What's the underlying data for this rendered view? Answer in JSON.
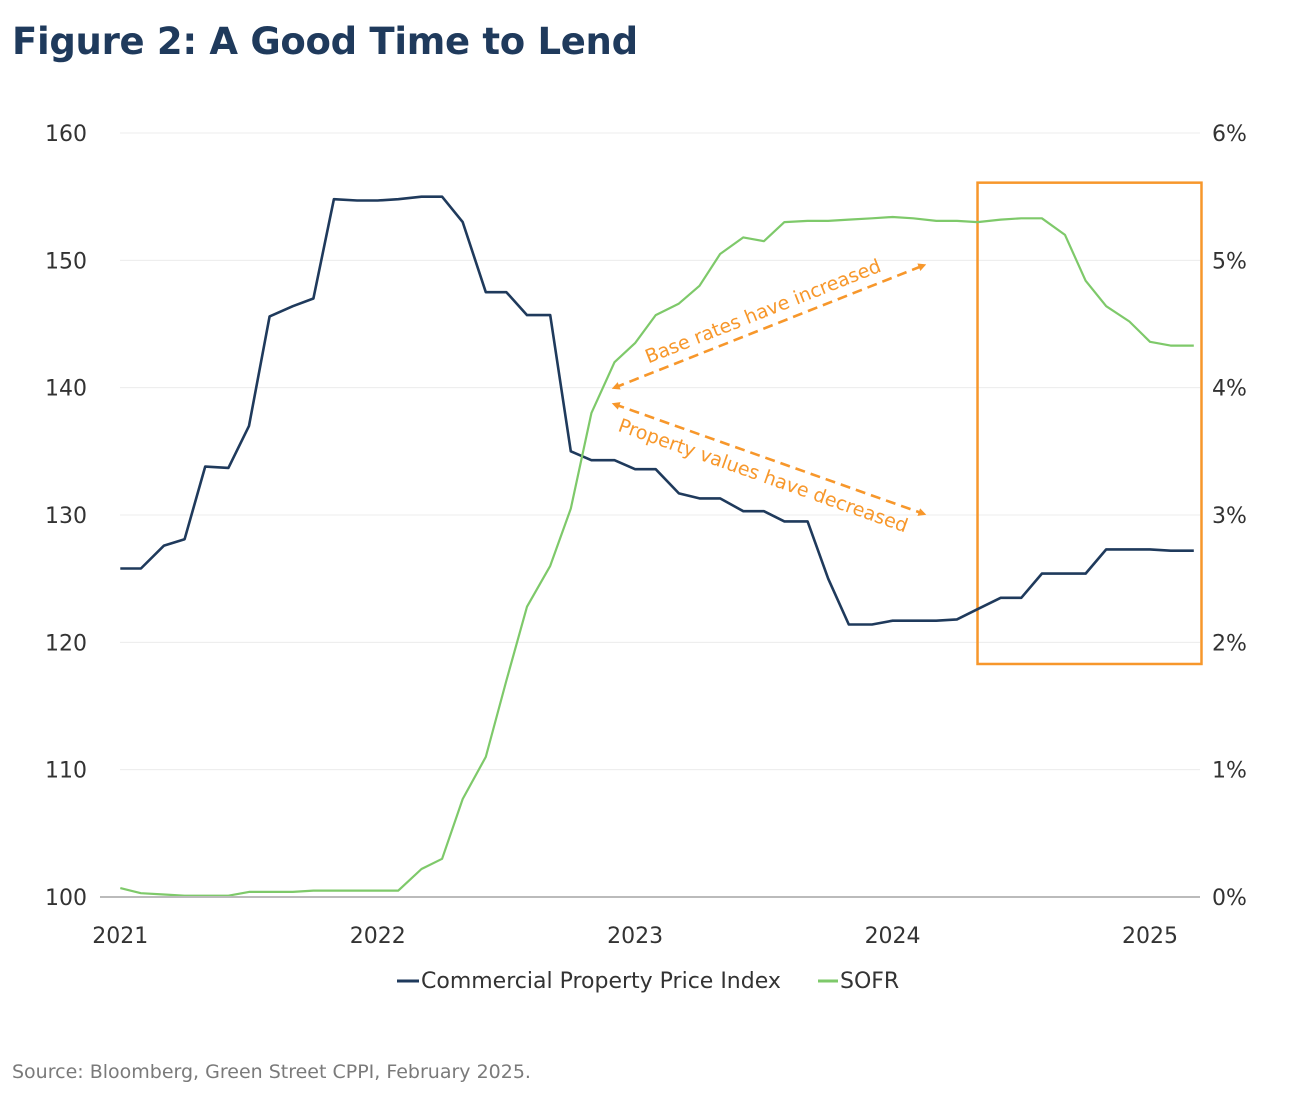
{
  "title": "Figure 2: A Good Time to Lend",
  "source": "Source: Bloomberg, Green Street CPPI, February 2025.",
  "colors": {
    "cppi": "#1f3a5c",
    "sofr": "#7ec96a",
    "annotation": "#f7972b",
    "grid": "#ececec",
    "axis": "#bbbbbb",
    "tick": "#333333"
  },
  "chart_data": {
    "type": "line",
    "title": "Figure 2: A Good Time to Lend",
    "xlabel": "",
    "ylabel": "",
    "xlim": [
      2021,
      2025.2
    ],
    "x_ticks": [
      2021,
      2022,
      2023,
      2024,
      2025
    ],
    "y_left": {
      "lim": [
        100,
        160
      ],
      "ticks": [
        100,
        110,
        120,
        130,
        140,
        150,
        160
      ],
      "tick_labels": [
        "100",
        "110",
        "120",
        "130",
        "140",
        "150",
        "160"
      ]
    },
    "y_right": {
      "lim": [
        0,
        6
      ],
      "ticks": [
        0,
        1,
        2,
        3,
        4,
        5,
        6
      ],
      "tick_labels": [
        "0%",
        "1%",
        "2%",
        "3%",
        "4%",
        "5%",
        "6%"
      ]
    },
    "series": [
      {
        "name": "Commercial Property Price Index",
        "axis": "left",
        "x": [
          2021.0,
          2021.08,
          2021.17,
          2021.25,
          2021.33,
          2021.42,
          2021.5,
          2021.58,
          2021.67,
          2021.75,
          2021.83,
          2021.92,
          2022.0,
          2022.08,
          2022.17,
          2022.25,
          2022.33,
          2022.42,
          2022.5,
          2022.58,
          2022.67,
          2022.75,
          2022.83,
          2022.92,
          2023.0,
          2023.08,
          2023.17,
          2023.25,
          2023.33,
          2023.42,
          2023.5,
          2023.58,
          2023.67,
          2023.75,
          2023.83,
          2023.92,
          2024.0,
          2024.08,
          2024.17,
          2024.25,
          2024.33,
          2024.42,
          2024.5,
          2024.58,
          2024.67,
          2024.75,
          2024.83,
          2024.92,
          2025.0,
          2025.08,
          2025.17
        ],
        "values": [
          125.8,
          125.8,
          127.6,
          128.1,
          133.8,
          133.7,
          137.0,
          145.6,
          146.4,
          147.0,
          154.8,
          154.7,
          154.7,
          154.8,
          155.0,
          155.0,
          153.0,
          147.5,
          147.5,
          145.7,
          145.7,
          135.0,
          134.3,
          134.3,
          133.6,
          133.6,
          131.7,
          131.3,
          131.3,
          130.3,
          130.3,
          129.5,
          129.5,
          125.0,
          121.4,
          121.4,
          121.7,
          121.7,
          121.7,
          121.8,
          122.6,
          123.5,
          123.5,
          125.4,
          125.4,
          125.4,
          127.3,
          127.3,
          127.3,
          127.2,
          127.2
        ]
      },
      {
        "name": "SOFR",
        "axis": "right",
        "x": [
          2021.0,
          2021.08,
          2021.17,
          2021.25,
          2021.33,
          2021.42,
          2021.5,
          2021.58,
          2021.67,
          2021.75,
          2021.83,
          2021.92,
          2022.0,
          2022.08,
          2022.17,
          2022.25,
          2022.33,
          2022.42,
          2022.5,
          2022.58,
          2022.67,
          2022.75,
          2022.83,
          2022.92,
          2023.0,
          2023.08,
          2023.17,
          2023.25,
          2023.33,
          2023.42,
          2023.5,
          2023.58,
          2023.67,
          2023.75,
          2023.83,
          2023.92,
          2024.0,
          2024.08,
          2024.17,
          2024.25,
          2024.33,
          2024.42,
          2024.5,
          2024.58,
          2024.67,
          2024.75,
          2024.83,
          2024.92,
          2025.0,
          2025.08,
          2025.17
        ],
        "values": [
          0.07,
          0.03,
          0.02,
          0.01,
          0.01,
          0.01,
          0.04,
          0.04,
          0.04,
          0.05,
          0.05,
          0.05,
          0.05,
          0.05,
          0.22,
          0.3,
          0.77,
          1.1,
          1.7,
          2.28,
          2.6,
          3.05,
          3.8,
          4.2,
          4.35,
          4.57,
          4.66,
          4.8,
          5.05,
          5.18,
          5.15,
          5.3,
          5.31,
          5.31,
          5.32,
          5.33,
          5.34,
          5.33,
          5.31,
          5.31,
          5.3,
          5.32,
          5.33,
          5.33,
          5.2,
          4.84,
          4.64,
          4.52,
          4.36,
          4.33,
          4.33
        ]
      }
    ],
    "legend": {
      "position": "bottom-center",
      "entries": [
        "Commercial Property Price Index",
        "SOFR"
      ]
    },
    "annotations": [
      {
        "text": "Base rates have increased",
        "from": [
          2022.92,
          4.0
        ],
        "to": [
          2024.12,
          4.96
        ]
      },
      {
        "text": "Property values have decreased",
        "from": [
          2022.92,
          138.7
        ],
        "to": [
          2024.12,
          130.1
        ]
      }
    ],
    "highlight_box": {
      "x_range": [
        2024.33,
        2025.2
      ],
      "left_range": [
        118.3,
        156.1
      ]
    }
  }
}
